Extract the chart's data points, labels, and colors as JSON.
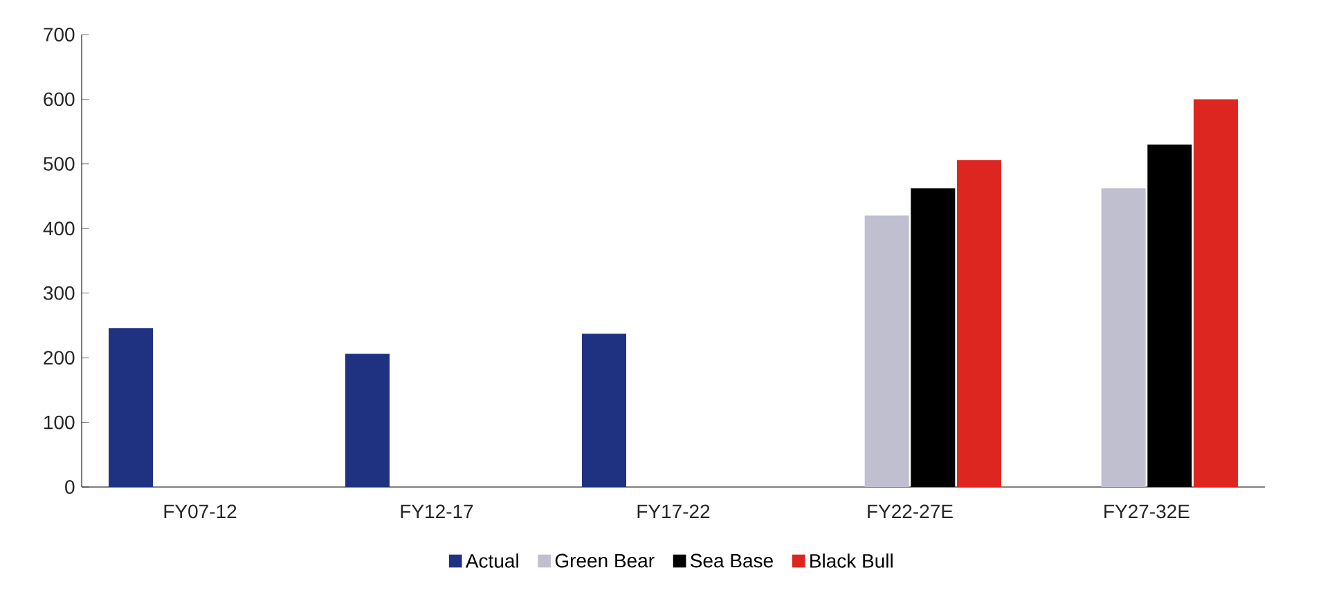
{
  "chart_data": {
    "type": "bar",
    "categories": [
      "FY07-12",
      "FY12-17",
      "FY17-22",
      "FY22-27E",
      "FY27-32E"
    ],
    "series": [
      {
        "name": "Actual",
        "color": "#1f3282",
        "values": [
          246,
          206,
          237,
          null,
          null
        ]
      },
      {
        "name": "Green Bear",
        "color": "#c0bfcf",
        "values": [
          null,
          null,
          null,
          420,
          462
        ]
      },
      {
        "name": "Sea Base",
        "color": "#000000",
        "values": [
          null,
          null,
          null,
          462,
          530
        ]
      },
      {
        "name": "Black Bull",
        "color": "#de2620",
        "values": [
          null,
          null,
          null,
          506,
          600
        ]
      }
    ],
    "ylim": [
      0,
      700
    ],
    "yticks": [
      0,
      100,
      200,
      300,
      400,
      500,
      600,
      700
    ],
    "grid": false,
    "legend": "bottom"
  }
}
